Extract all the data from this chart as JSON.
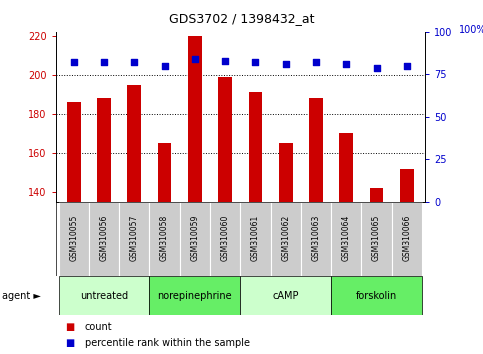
{
  "title": "GDS3702 / 1398432_at",
  "samples": [
    "GSM310055",
    "GSM310056",
    "GSM310057",
    "GSM310058",
    "GSM310059",
    "GSM310060",
    "GSM310061",
    "GSM310062",
    "GSM310063",
    "GSM310064",
    "GSM310065",
    "GSM310066"
  ],
  "count_values": [
    186,
    188,
    195,
    165,
    220,
    199,
    191,
    165,
    188,
    170,
    142,
    152
  ],
  "percentile_values": [
    82,
    82,
    82,
    80,
    84,
    83,
    82,
    81,
    82,
    81,
    79,
    80
  ],
  "bar_color": "#cc0000",
  "dot_color": "#0000cc",
  "ylim_left": [
    135,
    222
  ],
  "ylim_right": [
    0,
    100
  ],
  "yticks_left": [
    140,
    160,
    180,
    200,
    220
  ],
  "yticks_right": [
    0,
    25,
    50,
    75,
    100
  ],
  "dotted_lines": [
    160,
    180,
    200
  ],
  "agent_groups": [
    {
      "label": "untreated",
      "start": 0,
      "end": 3,
      "color": "#ccffcc"
    },
    {
      "label": "norepinephrine",
      "start": 3,
      "end": 6,
      "color": "#66ee66"
    },
    {
      "label": "cAMP",
      "start": 6,
      "end": 9,
      "color": "#ccffcc"
    },
    {
      "label": "forskolin",
      "start": 9,
      "end": 12,
      "color": "#66ee66"
    }
  ],
  "tick_bg_color": "#cccccc",
  "legend_count_label": "count",
  "legend_pct_label": "percentile rank within the sample",
  "agent_label": "agent ►",
  "bar_width": 0.45,
  "right_ylabel": "100%"
}
